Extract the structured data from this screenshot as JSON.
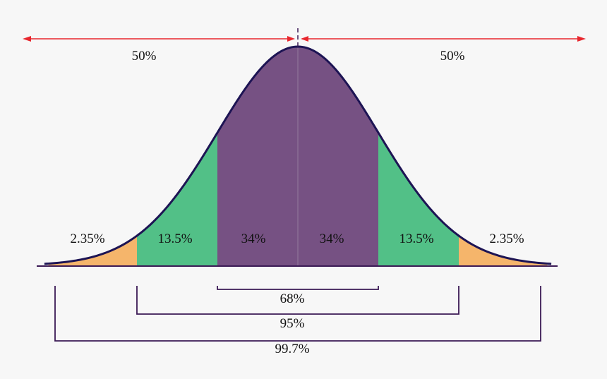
{
  "chart_data": {
    "type": "area",
    "title": "",
    "xlabel": "",
    "ylabel": "",
    "distribution": "normal",
    "mean": 0,
    "std_dev": 1,
    "x_range_sd": [
      -3,
      3
    ],
    "regions": [
      {
        "from_sd": -3,
        "to_sd": -2,
        "label": "2.35%",
        "color": "#f5b56b"
      },
      {
        "from_sd": -2,
        "to_sd": -1,
        "label": "13.5%",
        "color": "#52c087"
      },
      {
        "from_sd": -1,
        "to_sd": 0,
        "label": "34%",
        "color": "#765183"
      },
      {
        "from_sd": 0,
        "to_sd": 1,
        "label": "34%",
        "color": "#765183"
      },
      {
        "from_sd": 1,
        "to_sd": 2,
        "label": "13.5%",
        "color": "#52c087"
      },
      {
        "from_sd": 2,
        "to_sd": 3,
        "label": "2.35%",
        "color": "#f5b56b"
      }
    ],
    "halves": [
      {
        "side": "left",
        "label": "50%"
      },
      {
        "side": "right",
        "label": "50%"
      }
    ],
    "ranges": [
      {
        "within_sd": 1,
        "label": "68%"
      },
      {
        "within_sd": 2,
        "label": "95%"
      },
      {
        "within_sd": 3,
        "label": "99.7%"
      }
    ],
    "colors": {
      "curve": "#1d1454",
      "range_brackets": "#3b1a55",
      "half_arrows": "#e8262d",
      "axis": "#3b1a55"
    }
  }
}
